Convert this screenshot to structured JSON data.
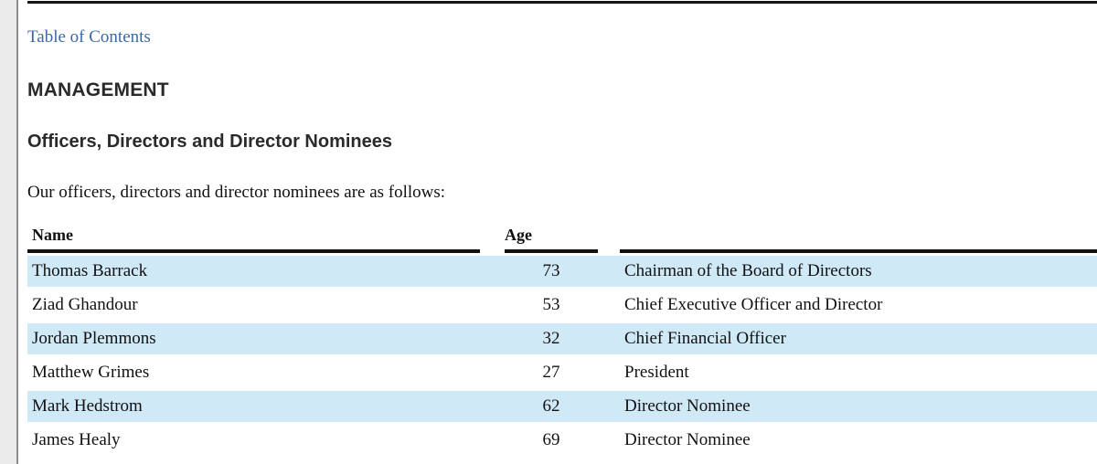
{
  "page": {
    "toc_link_label": "Table of Contents",
    "heading": "MANAGEMENT",
    "subheading": "Officers, Directors and Director Nominees",
    "intro_text": "Our officers, directors and director nominees are as follows:"
  },
  "table": {
    "columns": [
      {
        "key": "name",
        "label": "Name"
      },
      {
        "key": "age",
        "label": "Age"
      },
      {
        "key": "position",
        "label": ""
      }
    ],
    "rows": [
      {
        "name": "Thomas Barrack",
        "age": "73",
        "position": "Chairman of the Board of Directors"
      },
      {
        "name": "Ziad Ghandour",
        "age": "53",
        "position": "Chief Executive Officer and Director"
      },
      {
        "name": "Jordan Plemmons",
        "age": "32",
        "position": "Chief Financial Officer"
      },
      {
        "name": "Matthew Grimes",
        "age": "27",
        "position": "President"
      },
      {
        "name": "Mark Hedstrom",
        "age": "62",
        "position": "Director Nominee"
      },
      {
        "name": "James Healy",
        "age": "69",
        "position": "Director Nominee"
      }
    ]
  },
  "colors": {
    "row_highlight": "#d0e9f7",
    "link_blue": "#3b69a5",
    "rule_black": "#141414",
    "gutter_gray": "#ebebeb"
  }
}
